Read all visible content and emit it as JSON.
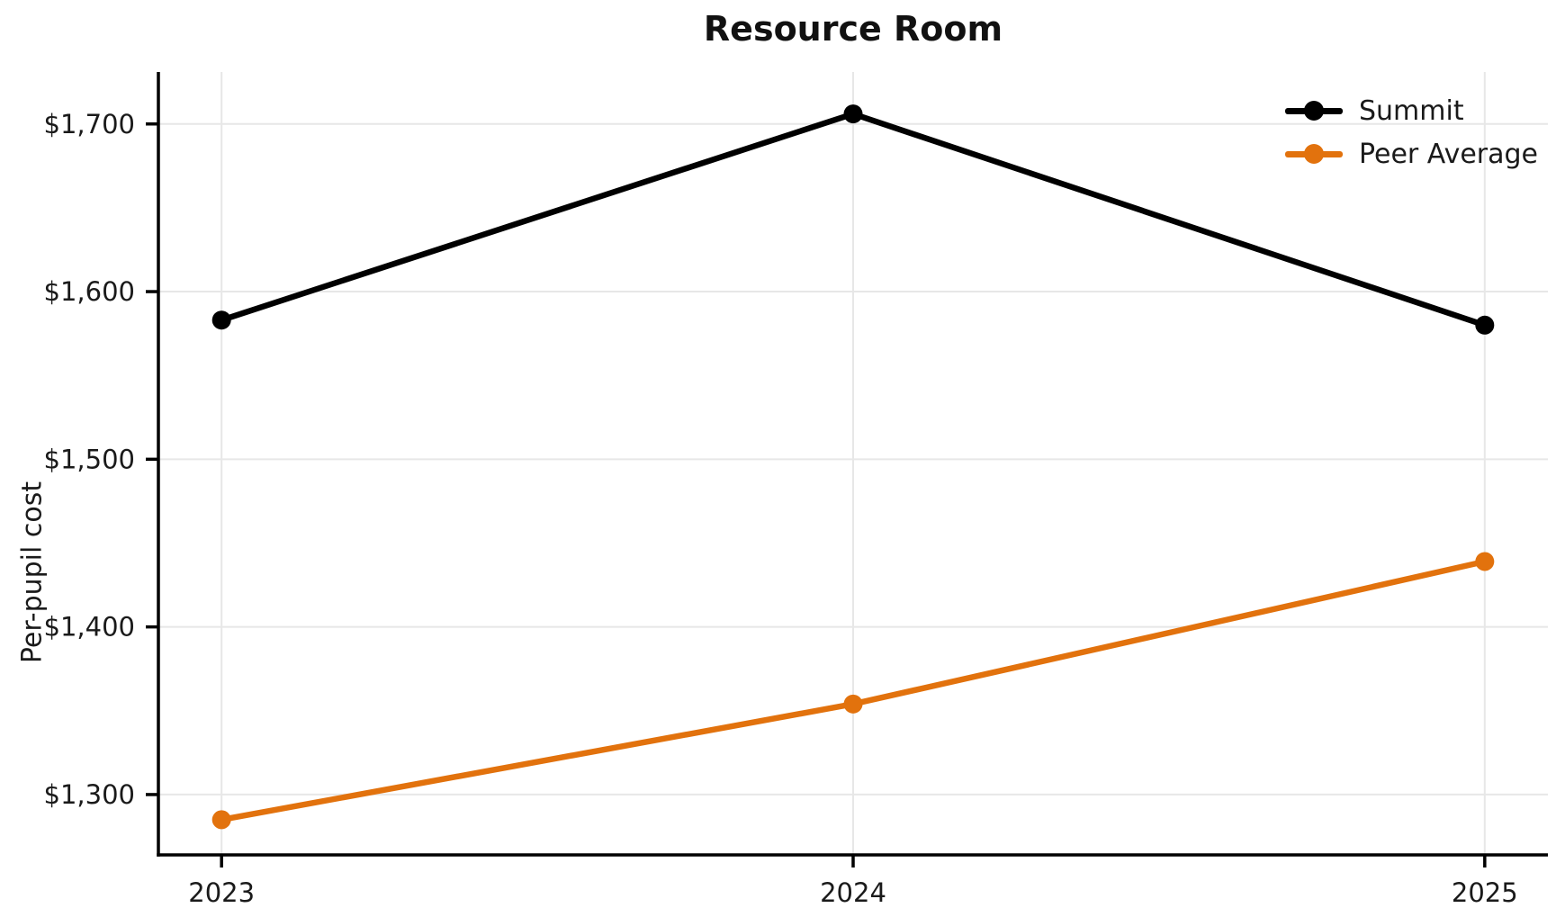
{
  "chart_data": {
    "type": "line",
    "title": "Resource Room",
    "xlabel": "",
    "ylabel": "Per-pupil cost",
    "x": [
      2023,
      2024,
      2025
    ],
    "x_ticklabels": [
      "2023",
      "2024",
      "2025"
    ],
    "y_ticks": [
      1300,
      1400,
      1500,
      1600,
      1700
    ],
    "y_ticklabels": [
      "$1,300",
      "$1,400",
      "$1,500",
      "$1,600",
      "$1,700"
    ],
    "xlim": [
      2022.9,
      2025.1
    ],
    "ylim": [
      1264,
      1731
    ],
    "grid": true,
    "grid_color": "#e7e7e7",
    "axis_color": "#000000",
    "legend_position": "upper right",
    "legend_frame": false,
    "marker": "o",
    "series": [
      {
        "name": "Summit",
        "color": "#000000",
        "values": [
          1583,
          1706,
          1580
        ]
      },
      {
        "name": "Peer Average",
        "color": "#E2720D",
        "values": [
          1285,
          1354,
          1439
        ]
      }
    ]
  }
}
